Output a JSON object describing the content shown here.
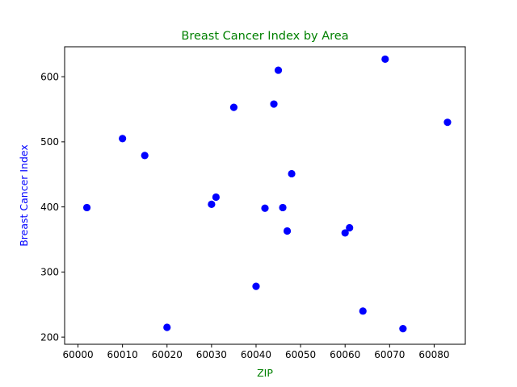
{
  "chart_data": {
    "type": "scatter",
    "title": "Breast Cancer Index by Area",
    "xlabel": "ZIP",
    "ylabel": "Breast Cancer Index",
    "xlim": [
      59997,
      60087
    ],
    "ylim": [
      189,
      646
    ],
    "x_ticks": [
      60000,
      60010,
      60020,
      60030,
      60040,
      60050,
      60060,
      60070,
      60080
    ],
    "y_ticks": [
      200,
      300,
      400,
      500,
      600
    ],
    "grid": false,
    "legend": "none",
    "colors": {
      "title": "#008000",
      "xlabel": "#008000",
      "ylabel": "#0000ff",
      "points": "#0000ff",
      "axes": "#000000"
    },
    "points": [
      {
        "x": 60002,
        "y": 399
      },
      {
        "x": 60010,
        "y": 505
      },
      {
        "x": 60015,
        "y": 479
      },
      {
        "x": 60020,
        "y": 215
      },
      {
        "x": 60030,
        "y": 404
      },
      {
        "x": 60031,
        "y": 415
      },
      {
        "x": 60035,
        "y": 553
      },
      {
        "x": 60040,
        "y": 278
      },
      {
        "x": 60042,
        "y": 398
      },
      {
        "x": 60044,
        "y": 558
      },
      {
        "x": 60045,
        "y": 610
      },
      {
        "x": 60046,
        "y": 399
      },
      {
        "x": 60047,
        "y": 363
      },
      {
        "x": 60048,
        "y": 451
      },
      {
        "x": 60060,
        "y": 360
      },
      {
        "x": 60061,
        "y": 368
      },
      {
        "x": 60064,
        "y": 240
      },
      {
        "x": 60069,
        "y": 627
      },
      {
        "x": 60073,
        "y": 213
      },
      {
        "x": 60083,
        "y": 530
      }
    ]
  }
}
